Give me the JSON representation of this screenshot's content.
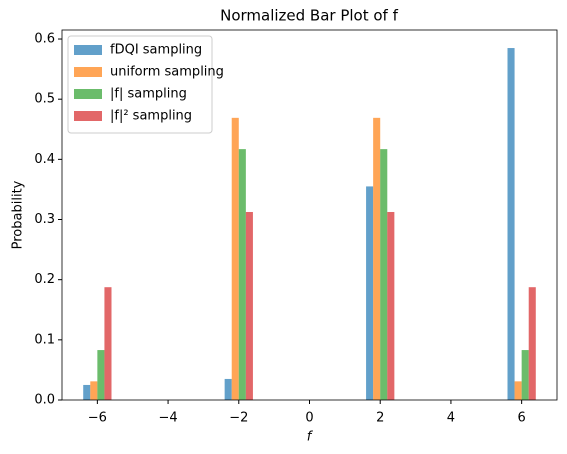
{
  "chart_data": {
    "type": "bar",
    "title": "Normalized Bar Plot of f",
    "xlabel": "f",
    "ylabel": "Probability",
    "x": [
      -6,
      -2,
      2,
      6
    ],
    "series": [
      {
        "name": "fDQI sampling",
        "color": "#1f77b4",
        "values": [
          0.025,
          0.035,
          0.355,
          0.585
        ]
      },
      {
        "name": "uniform sampling",
        "color": "#ff7f0e",
        "values": [
          0.031,
          0.469,
          0.469,
          0.031
        ]
      },
      {
        "name": "|f| sampling",
        "color": "#2ca02c",
        "values": [
          0.083,
          0.417,
          0.417,
          0.083
        ]
      },
      {
        "name": "|f|² sampling",
        "color": "#d62728",
        "values": [
          0.1875,
          0.3125,
          0.3125,
          0.1875
        ]
      }
    ],
    "xlim": [
      -7,
      7
    ],
    "xticks": [
      {
        "value": -6,
        "label": "−6"
      },
      {
        "value": -4,
        "label": "−4"
      },
      {
        "value": -2,
        "label": "−2"
      },
      0,
      2,
      4,
      6
    ],
    "ylim": [
      0,
      0.615
    ],
    "yticks": [
      {
        "value": 0,
        "label": "0.0"
      },
      0.1,
      0.2,
      0.3,
      0.4,
      0.5,
      0.6
    ],
    "legend": "upper left",
    "grid": false
  }
}
